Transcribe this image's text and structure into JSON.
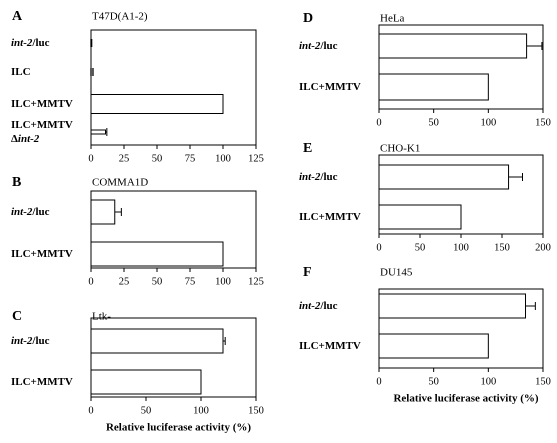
{
  "chart_data": [
    {
      "type": "bar",
      "orientation": "horizontal",
      "panel_label": "A",
      "title": "T47D(A1-2)",
      "categories": [
        {
          "parts": [
            {
              "text": "int-2",
              "italic": true
            },
            {
              "text": "/luc"
            }
          ]
        },
        {
          "parts": [
            {
              "text": "ILC"
            }
          ]
        },
        {
          "parts": [
            {
              "text": "ILC+MMTV"
            }
          ]
        },
        {
          "parts": [
            {
              "text": "ILC+MMTV"
            }
          ],
          "line2": [
            {
              "text": "Δ"
            },
            {
              "text": "int-2",
              "italic": true
            }
          ]
        }
      ],
      "values": [
        0.5,
        1.5,
        100,
        11
      ],
      "errors": [
        0,
        0,
        0,
        1
      ],
      "xlim": [
        0,
        125
      ],
      "xticks": [
        "0",
        "25",
        "50",
        "75",
        "100",
        "125"
      ],
      "xlabel": ""
    },
    {
      "type": "bar",
      "orientation": "horizontal",
      "panel_label": "B",
      "title": "COMMA1D",
      "categories": [
        {
          "parts": [
            {
              "text": "int-2",
              "italic": true
            },
            {
              "text": "/luc"
            }
          ]
        },
        {
          "parts": [
            {
              "text": "ILC+MMTV"
            }
          ]
        }
      ],
      "values": [
        18,
        100
      ],
      "errors": [
        5,
        0
      ],
      "xlim": [
        0,
        125
      ],
      "xticks": [
        "0",
        "25",
        "50",
        "75",
        "100",
        "125"
      ],
      "xlabel": ""
    },
    {
      "type": "bar",
      "orientation": "horizontal",
      "panel_label": "C",
      "title": "Ltk-",
      "categories": [
        {
          "parts": [
            {
              "text": "int-2",
              "italic": true
            },
            {
              "text": "/luc"
            }
          ]
        },
        {
          "parts": [
            {
              "text": "ILC+MMTV"
            }
          ]
        }
      ],
      "values": [
        120,
        100
      ],
      "errors": [
        2,
        0
      ],
      "xlim": [
        0,
        150
      ],
      "xticks": [
        "0",
        "50",
        "100",
        "150"
      ],
      "xlabel": "Relative luciferase activity (%)"
    },
    {
      "type": "bar",
      "orientation": "horizontal",
      "panel_label": "D",
      "title": "HeLa",
      "categories": [
        {
          "parts": [
            {
              "text": "int-2",
              "italic": true
            },
            {
              "text": "/luc"
            }
          ]
        },
        {
          "parts": [
            {
              "text": "ILC+MMTV"
            }
          ]
        }
      ],
      "values": [
        135,
        100
      ],
      "errors": [
        14,
        0
      ],
      "xlim": [
        0,
        150
      ],
      "xticks": [
        "0",
        "50",
        "100",
        "150"
      ],
      "xlabel": ""
    },
    {
      "type": "bar",
      "orientation": "horizontal",
      "panel_label": "E",
      "title": "CHO-K1",
      "categories": [
        {
          "parts": [
            {
              "text": "int-2",
              "italic": true
            },
            {
              "text": "/luc"
            }
          ]
        },
        {
          "parts": [
            {
              "text": "ILC+MMTV"
            }
          ]
        }
      ],
      "values": [
        158,
        100
      ],
      "errors": [
        17,
        0
      ],
      "xlim": [
        0,
        200
      ],
      "xticks": [
        "0",
        "50",
        "100",
        "150",
        "200"
      ],
      "xlabel": ""
    },
    {
      "type": "bar",
      "orientation": "horizontal",
      "panel_label": "F",
      "title": "DU145",
      "categories": [
        {
          "parts": [
            {
              "text": "int-2",
              "italic": true
            },
            {
              "text": "/luc"
            }
          ]
        },
        {
          "parts": [
            {
              "text": "ILC+MMTV"
            }
          ]
        }
      ],
      "values": [
        134,
        100
      ],
      "errors": [
        9,
        0
      ],
      "xlim": [
        0,
        150
      ],
      "xticks": [
        "0",
        "50",
        "100",
        "150"
      ],
      "xlabel": "Relative luciferase activity (%)"
    }
  ]
}
